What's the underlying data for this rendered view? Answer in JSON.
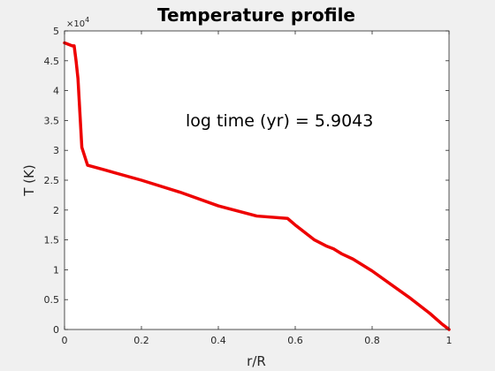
{
  "chart_data": {
    "type": "line",
    "title": "Temperature profile",
    "xlabel": "r/R",
    "ylabel": "T (K)",
    "xlim": [
      0,
      1
    ],
    "ylim": [
      0,
      50000
    ],
    "xticks": [
      "0",
      "0.2",
      "0.4",
      "0.6",
      "0.8",
      "1"
    ],
    "yticks": [
      "0",
      "0.5",
      "1",
      "1.5",
      "2",
      "2.5",
      "3",
      "3.5",
      "4",
      "4.5",
      "5"
    ],
    "xtick_values": [
      0,
      0.2,
      0.4,
      0.6,
      0.8,
      1
    ],
    "ytick_values": [
      0,
      5000,
      10000,
      15000,
      20000,
      25000,
      30000,
      35000,
      40000,
      45000,
      50000
    ],
    "y_exponent_base": "×10",
    "y_exponent_power": "4",
    "annotation": "log time (yr) = 5.9043",
    "grid": false,
    "line_color": "#ee0000",
    "series": [
      {
        "x": [
          0,
          0.02,
          0.025,
          0.03,
          0.035,
          0.045,
          0.06,
          0.1,
          0.2,
          0.3,
          0.4,
          0.5,
          0.58,
          0.6,
          0.65,
          0.68,
          0.7,
          0.72,
          0.75,
          0.8,
          0.85,
          0.9,
          0.95,
          0.98,
          1.0
        ],
        "y": [
          48000,
          47500,
          47500,
          45000,
          42000,
          30500,
          27500,
          26800,
          25000,
          23000,
          20700,
          19000,
          18600,
          17500,
          15000,
          14000,
          13500,
          12700,
          11800,
          9800,
          7500,
          5200,
          2700,
          1000,
          0
        ]
      }
    ]
  }
}
